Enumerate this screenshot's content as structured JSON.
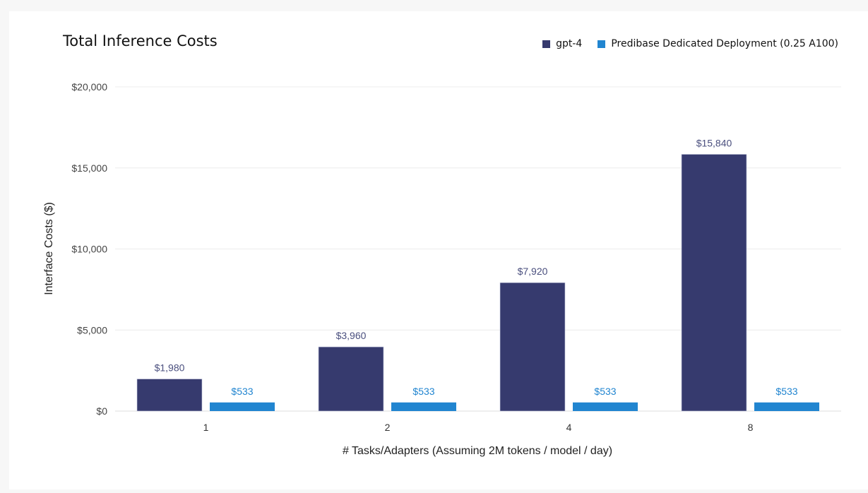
{
  "chart_data": {
    "type": "bar",
    "title": "Total Inference Costs",
    "xlabel": "# Tasks/Adapters (Assuming 2M tokens / model / day)",
    "ylabel": "Interface Costs ($)",
    "categories": [
      "1",
      "2",
      "4",
      "8"
    ],
    "series": [
      {
        "name": "gpt-4",
        "color": "#363a6e",
        "label_color": "#4a4f7e",
        "values": [
          1980,
          3960,
          7920,
          15840
        ],
        "labels": [
          "$1,980",
          "$3,960",
          "$7,920",
          "$15,840"
        ]
      },
      {
        "name": "Predibase Dedicated Deployment (0.25 A100)",
        "color": "#2185d0",
        "label_color": "#2185d0",
        "values": [
          533,
          533,
          533,
          533
        ],
        "labels": [
          "$533",
          "$533",
          "$533",
          "$533"
        ]
      }
    ],
    "ylim": [
      0,
      20000
    ],
    "yticks": [
      0,
      5000,
      10000,
      15000,
      20000
    ],
    "ytick_labels": [
      "$0",
      "$5,000",
      "$10,000",
      "$15,000",
      "$20,000"
    ],
    "grid": true,
    "legend_position": "top-right"
  }
}
